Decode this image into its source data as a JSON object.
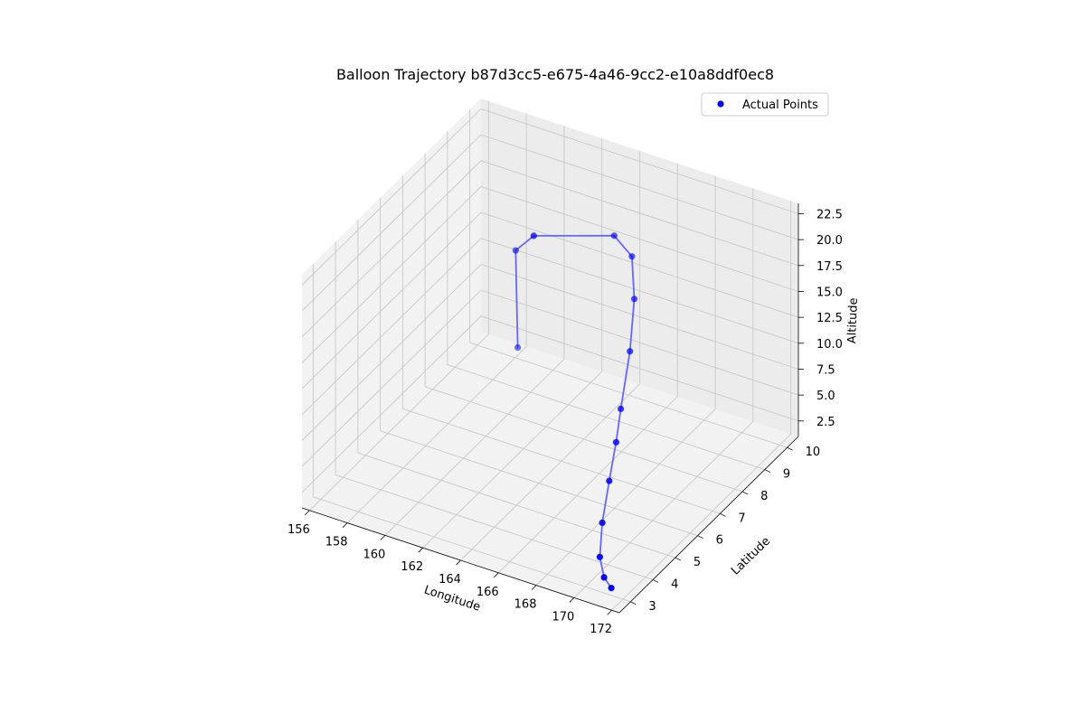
{
  "chart_data": {
    "type": "scatter",
    "projection": "3d",
    "title": "Balloon Trajectory b87d3cc5-e675-4a46-9cc2-e10a8ddf0ec8",
    "xlabel": "Longitude",
    "ylabel": "Latitude",
    "zlabel": "Altitude",
    "xlim": [
      155.6,
      172.4
    ],
    "ylim": [
      2.5,
      10.5
    ],
    "zlim": [
      1.0,
      23.5
    ],
    "xticks": [
      "156",
      "158",
      "160",
      "162",
      "164",
      "166",
      "168",
      "170",
      "172"
    ],
    "yticks": [
      "3",
      "4",
      "5",
      "6",
      "7",
      "8",
      "9",
      "10"
    ],
    "zticks": [
      "2.5",
      "5.0",
      "7.5",
      "10.0",
      "12.5",
      "15.0",
      "17.5",
      "20.0",
      "22.5"
    ],
    "grid": true,
    "legend": {
      "position": "upper right",
      "entries": [
        "Actual Points"
      ]
    },
    "series": [
      {
        "name": "Actual Points",
        "color": "#0000ff",
        "line_color": "#6666ff",
        "x": [
          171.5,
          171.0,
          170.3,
          169.6,
          168.9,
          168.2,
          167.5,
          166.8,
          166.2,
          165.6,
          164.9,
          162.3,
          158.5,
          157.9
        ],
        "y": [
          2.9,
          3.0,
          3.4,
          4.1,
          5.0,
          5.9,
          6.7,
          7.7,
          8.4,
          8.8,
          8.6,
          7.2,
          9.6,
          10.2
        ],
        "z": [
          2.0,
          2.5,
          3.2,
          4.6,
          6.3,
          7.7,
          8.8,
          11.8,
          15.0,
          17.9,
          19.9,
          21.3,
          12.5,
          1.5
        ]
      }
    ]
  }
}
